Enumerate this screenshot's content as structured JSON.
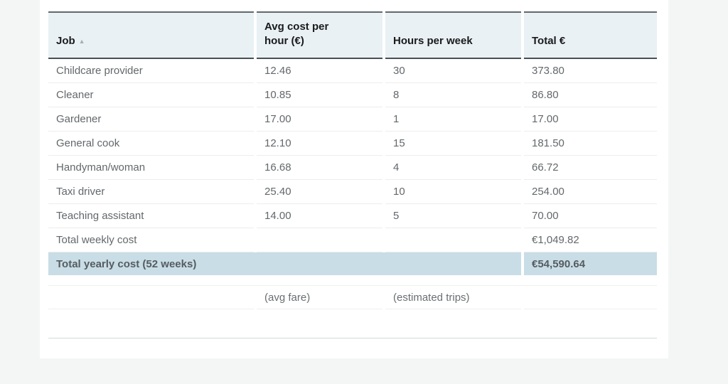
{
  "page": {
    "background_color": "#f4f5f5",
    "card_color": "#ffffff"
  },
  "colors": {
    "header_bg": "#e9f1f4",
    "highlight_row_bg": "#c9dde6",
    "header_text": "#191b1c",
    "body_text": "#63686b",
    "dark_border": "#494f52",
    "row_border": "#ededed"
  },
  "table": {
    "columns": [
      {
        "label": "Job",
        "sort": "ascending",
        "sort_glyph": "▲"
      },
      {
        "label": "Avg cost per hour (€)"
      },
      {
        "label": "Hours per week"
      },
      {
        "label": "Total €"
      }
    ],
    "rows": [
      {
        "job": "Childcare provider",
        "avg_cost": "12.46",
        "hours": "30",
        "total": "373.80"
      },
      {
        "job": "Cleaner",
        "avg_cost": "10.85",
        "hours": "8",
        "total": "86.80"
      },
      {
        "job": "Gardener",
        "avg_cost": "17.00",
        "hours": "1",
        "total": "17.00"
      },
      {
        "job": "General cook",
        "avg_cost": "12.10",
        "hours": "15",
        "total": "181.50"
      },
      {
        "job": "Handyman/woman",
        "avg_cost": "16.68",
        "hours": "4",
        "total": "66.72"
      },
      {
        "job": "Taxi driver",
        "avg_cost": "25.40",
        "hours": "10",
        "total": "254.00"
      },
      {
        "job": "Teaching assistant",
        "avg_cost": "14.00",
        "hours": "5",
        "total": "70.00"
      }
    ],
    "total_weekly": {
      "label": "Total weekly cost",
      "value": "€1,049.82"
    },
    "total_yearly": {
      "label": "Total yearly cost (52 weeks)",
      "value": "€54,590.64"
    },
    "footnotes": {
      "avg_cost": "(avg fare)",
      "hours": "(estimated trips)"
    }
  },
  "chart_data": {
    "type": "table",
    "title": "",
    "columns": [
      "Job",
      "Avg cost per hour (€)",
      "Hours per week",
      "Total €"
    ],
    "rows": [
      [
        "Childcare provider",
        12.46,
        30,
        373.8
      ],
      [
        "Cleaner",
        10.85,
        8,
        86.8
      ],
      [
        "Gardener",
        17.0,
        1,
        17.0
      ],
      [
        "General cook",
        12.1,
        15,
        181.5
      ],
      [
        "Handyman/woman",
        16.68,
        4,
        66.72
      ],
      [
        "Taxi driver",
        25.4,
        10,
        254.0
      ],
      [
        "Teaching assistant",
        14.0,
        5,
        70.0
      ]
    ],
    "totals": {
      "weekly_label": "Total weekly cost",
      "weekly_value": "€1,049.82",
      "yearly_label": "Total yearly cost (52 weeks)",
      "yearly_value": "€54,590.64"
    },
    "annotations": [
      "(avg fare)",
      "(estimated trips)"
    ],
    "sorted_by": "Job ascending",
    "layout": {
      "highlight_row": "Total yearly cost (52 weeks)",
      "grid": "horizontal-only"
    }
  }
}
